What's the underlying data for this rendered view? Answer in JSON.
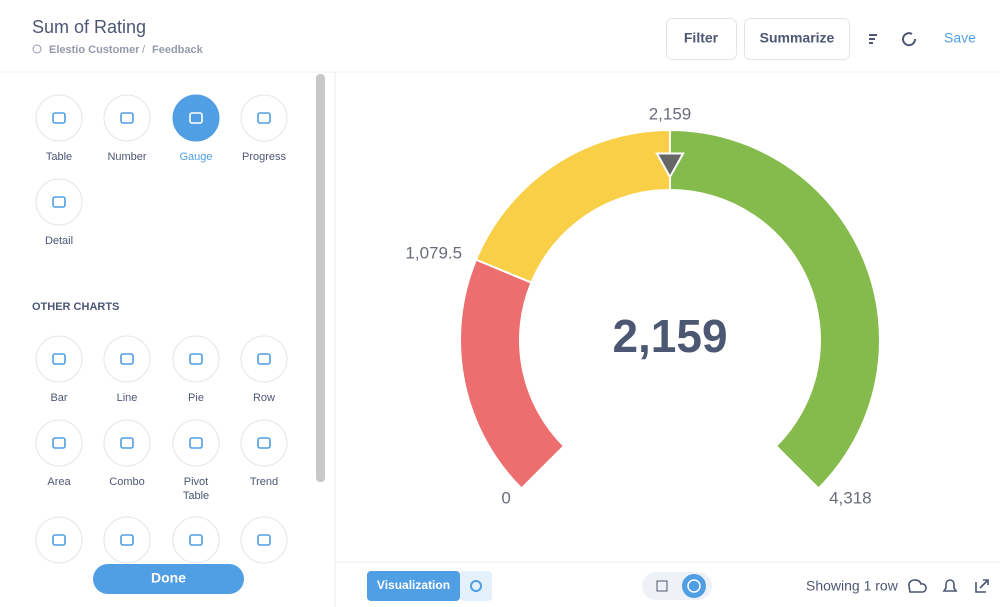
{
  "header": {
    "title": "Sum of Rating",
    "breadcrumb": [
      "Elestio Customer",
      "Feedback"
    ],
    "buttons": [
      "Filter",
      "Summarize"
    ],
    "save": "Save"
  },
  "sidebar": {
    "chart_types": [
      "Table",
      "Number",
      "Gauge",
      "Progress",
      "Detail"
    ],
    "other_heading": "OTHER CHARTS",
    "other_types": [
      "Bar",
      "Line",
      "Pie",
      "Row",
      "Area",
      "Combo",
      "Pivot Table",
      "Trend",
      null,
      null,
      null,
      null
    ],
    "done": "Done"
  },
  "chart_data": {
    "type": "gauge",
    "value": 2159,
    "value_label": "2,159",
    "lim": [
      0,
      4318
    ],
    "segments": [
      {
        "min": 0,
        "max": 1079.5,
        "color": "#ed6e6e"
      },
      {
        "min": 1079.5,
        "max": 2159,
        "color": "#f9cf48"
      },
      {
        "min": 2159,
        "max": 4318,
        "color": "#84bb4c"
      }
    ],
    "ticks": [
      0,
      {
        "value": 1079.5,
        "label": "1,079.5"
      },
      {
        "value": 2159,
        "label": "2,159"
      },
      {
        "value": 4318,
        "label": "4,318"
      }
    ]
  },
  "footer": {
    "visualization": "Visualization",
    "row_count": "Showing 1 row"
  }
}
